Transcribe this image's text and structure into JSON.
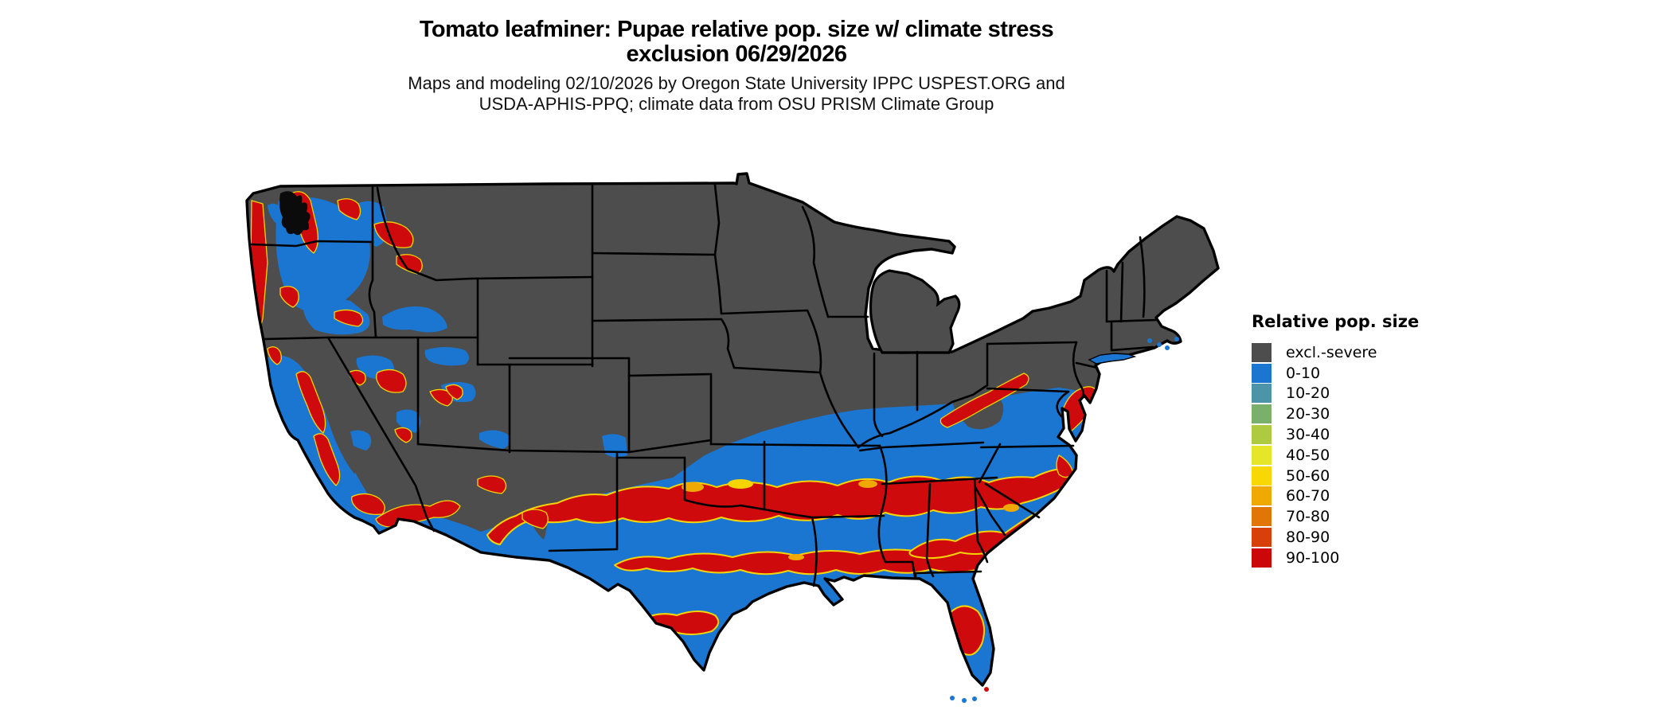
{
  "title": {
    "line1": "Tomato leafminer: Pupae relative pop. size w/ climate stress",
    "line2": "exclusion 06/29/2026"
  },
  "subtitle": {
    "line1": "Maps and modeling 02/10/2026 by Oregon State University IPPC USPEST.ORG and",
    "line2": "USDA-APHIS-PPQ; climate data from OSU PRISM Climate Group"
  },
  "legend": {
    "title": "Relative pop. size",
    "items": [
      {
        "label": "excl.-severe",
        "color": "#4d4d4d"
      },
      {
        "label": "0-10",
        "color": "#1b76d1"
      },
      {
        "label": "10-20",
        "color": "#4e94a8"
      },
      {
        "label": "20-30",
        "color": "#79b16c"
      },
      {
        "label": "30-40",
        "color": "#aecb3f"
      },
      {
        "label": "40-50",
        "color": "#e6e628"
      },
      {
        "label": "50-60",
        "color": "#f8d804"
      },
      {
        "label": "60-70",
        "color": "#f0a802"
      },
      {
        "label": "70-80",
        "color": "#e27508"
      },
      {
        "label": "80-90",
        "color": "#d8400a"
      },
      {
        "label": "90-100",
        "color": "#cb0709"
      }
    ]
  },
  "map": {
    "region": "Contiguous United States",
    "colors": {
      "excluded_gray": "#4d4d4d",
      "low_pop_blue": "#1b76d1",
      "high_pop_red": "#cf0a0c",
      "fringe_yellow": "#f6d404",
      "fringe_orange": "#f0a802",
      "border_black": "#000000",
      "water_white": "#ffffff"
    }
  }
}
